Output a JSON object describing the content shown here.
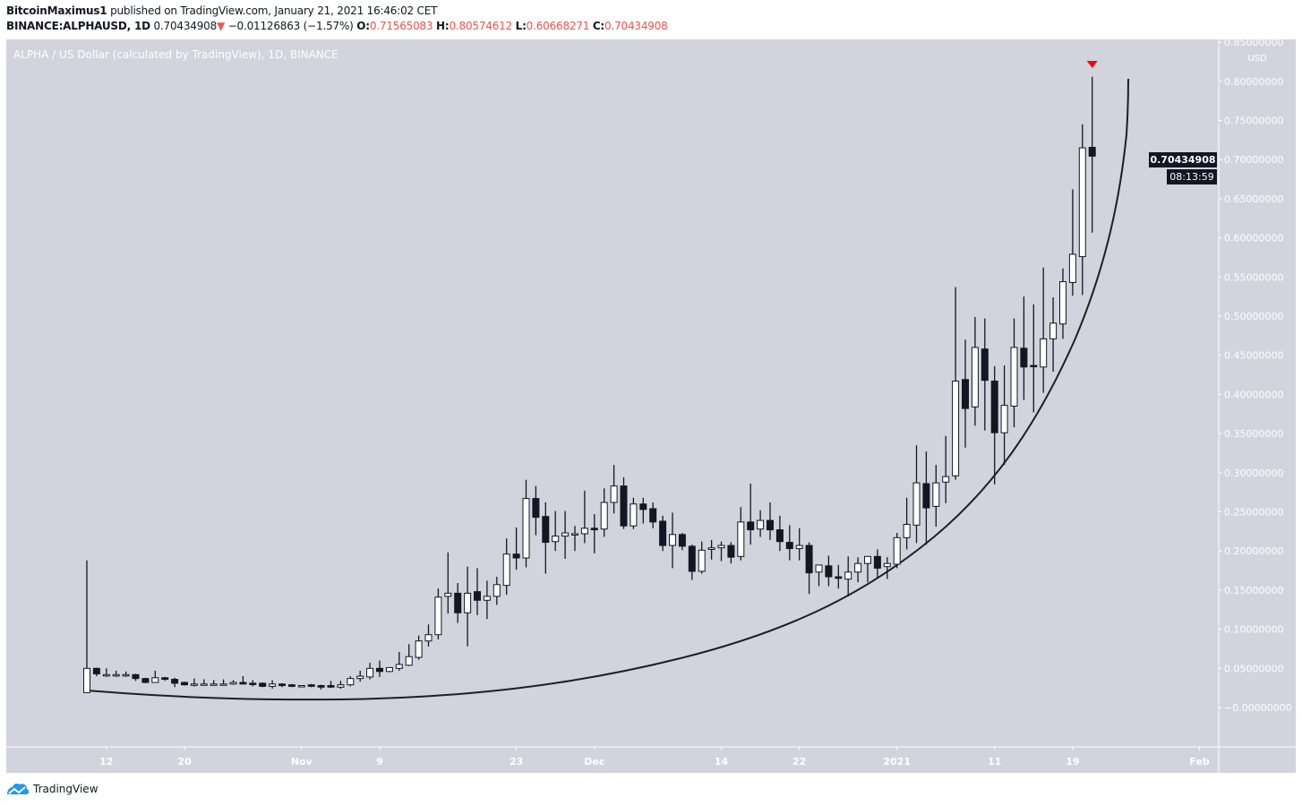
{
  "header": {
    "author": "BitcoinMaximus1",
    "published_text": "published on TradingView.com, January 21, 2021 16:46:02 CET",
    "symbol": "BINANCE:ALPHAUSD, 1D",
    "last_price": "0.70434908",
    "change": "−0.01126863 (−1.57%)",
    "change_direction": "down",
    "o_label": "O:",
    "o_value": "0.71565083",
    "h_label": "H:",
    "h_value": "0.80574612",
    "l_label": "L:",
    "l_value": "0.60668271",
    "c_label": "C:",
    "c_value": "0.70434908"
  },
  "chart_title": "ALPHA / US Dollar (calculated by TradingView), 1D, BINANCE",
  "price_axis": {
    "currency": "USD",
    "ticks": [
      "0.85000000",
      "0.80000000",
      "0.75000000",
      "0.70000000",
      "0.65000000",
      "0.60000000",
      "0.55000000",
      "0.50000000",
      "0.45000000",
      "0.40000000",
      "0.35000000",
      "0.30000000",
      "0.25000000",
      "0.20000000",
      "0.15000000",
      "0.10000000",
      "0.05000000",
      "−0.00000000"
    ],
    "current_price_label": "0.70434908",
    "countdown_label": "08:13:59"
  },
  "colors": {
    "background": "#d1d4dc",
    "up_candle": "#ffffff",
    "down_candle": "#131722",
    "marker": "#ff0000",
    "curve": "#1f1f1f",
    "brand": "#2196f3"
  },
  "footer": {
    "brand": "TradingView"
  },
  "chart_data": {
    "type": "candlestick",
    "title": "ALPHA / US Dollar (calculated by TradingView), 1D, BINANCE",
    "ylabel": "USD",
    "ylim": [
      -0.05,
      0.85
    ],
    "grid": false,
    "start_date": "2020-10-10",
    "interval": "1D",
    "x_ticks": [
      {
        "label": "12",
        "date": "2020-10-12"
      },
      {
        "label": "20",
        "date": "2020-10-20"
      },
      {
        "label": "Nov",
        "date": "2020-11-01"
      },
      {
        "label": "9",
        "date": "2020-11-09"
      },
      {
        "label": "23",
        "date": "2020-11-23"
      },
      {
        "label": "Dec",
        "date": "2020-12-01"
      },
      {
        "label": "14",
        "date": "2020-12-14"
      },
      {
        "label": "22",
        "date": "2020-12-22"
      },
      {
        "label": "2021",
        "date": "2021-01-01"
      },
      {
        "label": "11",
        "date": "2021-01-11"
      },
      {
        "label": "19",
        "date": "2021-01-19"
      },
      {
        "label": "Feb",
        "date": "2021-02-01"
      }
    ],
    "ohlc_columns": [
      "open",
      "high",
      "low",
      "close"
    ],
    "ohlc": [
      [
        0.019,
        0.188,
        0.019,
        0.05
      ],
      [
        0.05,
        0.051,
        0.04,
        0.043
      ],
      [
        0.042,
        0.05,
        0.039,
        0.042
      ],
      [
        0.042,
        0.047,
        0.039,
        0.042
      ],
      [
        0.042,
        0.046,
        0.039,
        0.042
      ],
      [
        0.042,
        0.043,
        0.034,
        0.037
      ],
      [
        0.037,
        0.038,
        0.031,
        0.032
      ],
      [
        0.032,
        0.047,
        0.032,
        0.038
      ],
      [
        0.038,
        0.039,
        0.034,
        0.036
      ],
      [
        0.036,
        0.038,
        0.026,
        0.031
      ],
      [
        0.032,
        0.033,
        0.028,
        0.029
      ],
      [
        0.03,
        0.037,
        0.027,
        0.03
      ],
      [
        0.03,
        0.036,
        0.029,
        0.03
      ],
      [
        0.03,
        0.035,
        0.028,
        0.03
      ],
      [
        0.03,
        0.036,
        0.029,
        0.03
      ],
      [
        0.03,
        0.035,
        0.029,
        0.032
      ],
      [
        0.032,
        0.04,
        0.03,
        0.03
      ],
      [
        0.031,
        0.035,
        0.027,
        0.03
      ],
      [
        0.031,
        0.032,
        0.026,
        0.027
      ],
      [
        0.027,
        0.035,
        0.024,
        0.03
      ],
      [
        0.03,
        0.031,
        0.026,
        0.028
      ],
      [
        0.029,
        0.03,
        0.026,
        0.027
      ],
      [
        0.028,
        0.028,
        0.027,
        0.028
      ],
      [
        0.029,
        0.03,
        0.026,
        0.027
      ],
      [
        0.028,
        0.029,
        0.023,
        0.026
      ],
      [
        0.028,
        0.034,
        0.025,
        0.026
      ],
      [
        0.026,
        0.034,
        0.024,
        0.029
      ],
      [
        0.029,
        0.04,
        0.027,
        0.037
      ],
      [
        0.037,
        0.047,
        0.033,
        0.04
      ],
      [
        0.039,
        0.057,
        0.036,
        0.05
      ],
      [
        0.05,
        0.06,
        0.039,
        0.046
      ],
      [
        0.046,
        0.051,
        0.045,
        0.051
      ],
      [
        0.05,
        0.071,
        0.047,
        0.055
      ],
      [
        0.054,
        0.081,
        0.053,
        0.065
      ],
      [
        0.064,
        0.092,
        0.061,
        0.085
      ],
      [
        0.085,
        0.106,
        0.078,
        0.093
      ],
      [
        0.093,
        0.152,
        0.087,
        0.141
      ],
      [
        0.142,
        0.198,
        0.12,
        0.146
      ],
      [
        0.146,
        0.159,
        0.108,
        0.121
      ],
      [
        0.121,
        0.18,
        0.078,
        0.146
      ],
      [
        0.148,
        0.178,
        0.118,
        0.137
      ],
      [
        0.137,
        0.162,
        0.113,
        0.142
      ],
      [
        0.142,
        0.167,
        0.131,
        0.157
      ],
      [
        0.156,
        0.216,
        0.144,
        0.196
      ],
      [
        0.196,
        0.23,
        0.176,
        0.191
      ],
      [
        0.191,
        0.291,
        0.179,
        0.267
      ],
      [
        0.267,
        0.283,
        0.22,
        0.243
      ],
      [
        0.244,
        0.262,
        0.171,
        0.211
      ],
      [
        0.212,
        0.251,
        0.2,
        0.219
      ],
      [
        0.219,
        0.251,
        0.19,
        0.223
      ],
      [
        0.222,
        0.232,
        0.2,
        0.222
      ],
      [
        0.222,
        0.277,
        0.21,
        0.229
      ],
      [
        0.229,
        0.247,
        0.197,
        0.227
      ],
      [
        0.228,
        0.28,
        0.218,
        0.262
      ],
      [
        0.262,
        0.31,
        0.248,
        0.283
      ],
      [
        0.283,
        0.294,
        0.228,
        0.232
      ],
      [
        0.232,
        0.268,
        0.228,
        0.26
      ],
      [
        0.26,
        0.268,
        0.235,
        0.253
      ],
      [
        0.254,
        0.262,
        0.229,
        0.237
      ],
      [
        0.238,
        0.245,
        0.2,
        0.207
      ],
      [
        0.207,
        0.249,
        0.178,
        0.221
      ],
      [
        0.221,
        0.223,
        0.201,
        0.206
      ],
      [
        0.206,
        0.208,
        0.163,
        0.174
      ],
      [
        0.174,
        0.212,
        0.171,
        0.201
      ],
      [
        0.202,
        0.214,
        0.189,
        0.204
      ],
      [
        0.204,
        0.212,
        0.187,
        0.207
      ],
      [
        0.207,
        0.211,
        0.184,
        0.192
      ],
      [
        0.193,
        0.256,
        0.188,
        0.237
      ],
      [
        0.237,
        0.286,
        0.208,
        0.227
      ],
      [
        0.228,
        0.252,
        0.218,
        0.239
      ],
      [
        0.239,
        0.262,
        0.214,
        0.227
      ],
      [
        0.227,
        0.245,
        0.2,
        0.212
      ],
      [
        0.211,
        0.233,
        0.188,
        0.203
      ],
      [
        0.203,
        0.229,
        0.188,
        0.207
      ],
      [
        0.207,
        0.211,
        0.145,
        0.172
      ],
      [
        0.173,
        0.182,
        0.155,
        0.182
      ],
      [
        0.181,
        0.194,
        0.155,
        0.167
      ],
      [
        0.167,
        0.182,
        0.152,
        0.165
      ],
      [
        0.164,
        0.193,
        0.142,
        0.173
      ],
      [
        0.173,
        0.192,
        0.16,
        0.184
      ],
      [
        0.184,
        0.193,
        0.16,
        0.193
      ],
      [
        0.193,
        0.202,
        0.166,
        0.178
      ],
      [
        0.18,
        0.192,
        0.164,
        0.184
      ],
      [
        0.183,
        0.223,
        0.178,
        0.217
      ],
      [
        0.217,
        0.268,
        0.202,
        0.234
      ],
      [
        0.233,
        0.335,
        0.21,
        0.287
      ],
      [
        0.286,
        0.327,
        0.208,
        0.255
      ],
      [
        0.257,
        0.31,
        0.231,
        0.287
      ],
      [
        0.288,
        0.347,
        0.261,
        0.295
      ],
      [
        0.296,
        0.537,
        0.291,
        0.417
      ],
      [
        0.419,
        0.47,
        0.332,
        0.382
      ],
      [
        0.384,
        0.499,
        0.36,
        0.46
      ],
      [
        0.458,
        0.497,
        0.354,
        0.418
      ],
      [
        0.417,
        0.436,
        0.285,
        0.351
      ],
      [
        0.351,
        0.437,
        0.31,
        0.386
      ],
      [
        0.385,
        0.497,
        0.358,
        0.46
      ],
      [
        0.459,
        0.525,
        0.393,
        0.435
      ],
      [
        0.437,
        0.515,
        0.377,
        0.436
      ],
      [
        0.435,
        0.562,
        0.402,
        0.471
      ],
      [
        0.471,
        0.524,
        0.429,
        0.491
      ],
      [
        0.49,
        0.561,
        0.471,
        0.544
      ],
      [
        0.543,
        0.662,
        0.526,
        0.579
      ],
      [
        0.576,
        0.745,
        0.527,
        0.715
      ],
      [
        0.71565083,
        0.80574612,
        0.60668271,
        0.70434908
      ]
    ],
    "annotations": [
      {
        "type": "sell-arrow-marker",
        "date": "2021-01-21"
      },
      {
        "type": "parabolic-curve"
      }
    ]
  }
}
